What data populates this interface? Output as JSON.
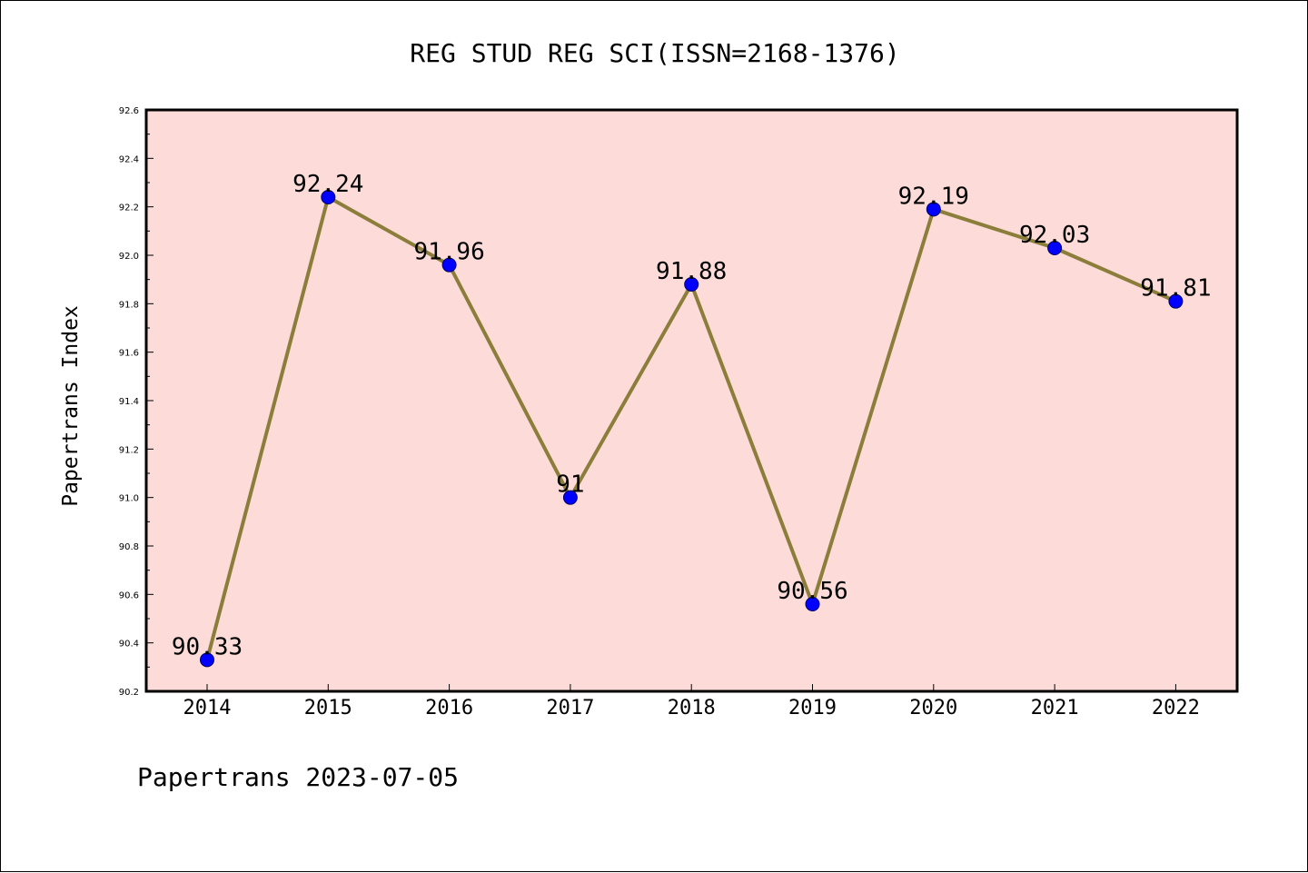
{
  "chart_data": {
    "type": "line",
    "title": "REG STUD REG SCI(ISSN=2168-1376)",
    "xlabel": "",
    "ylabel": "Papertrans Index",
    "categories": [
      "2014",
      "2015",
      "2016",
      "2017",
      "2018",
      "2019",
      "2020",
      "2021",
      "2022"
    ],
    "series": [
      {
        "values": [
          90.33,
          92.24,
          91.96,
          91.0,
          91.88,
          90.56,
          92.19,
          92.03,
          91.81
        ],
        "labels": [
          "90.33",
          "92.24",
          "91.96",
          "91",
          "91.88",
          "90.56",
          "92.19",
          "92.03",
          "91.81"
        ],
        "line_color": "#8b7d3a",
        "marker_color": "#0000ff"
      }
    ],
    "ylim": [
      90.2,
      92.6
    ],
    "yticks": [
      "90.2",
      "90.4",
      "90.6",
      "90.8",
      "91.0",
      "91.2",
      "91.4",
      "91.6",
      "91.8",
      "92.0",
      "92.2",
      "92.4",
      "92.6"
    ],
    "grid": false,
    "plot_background": "#fddbd9"
  },
  "footer": {
    "text": "Papertrans 2023-07-05"
  }
}
